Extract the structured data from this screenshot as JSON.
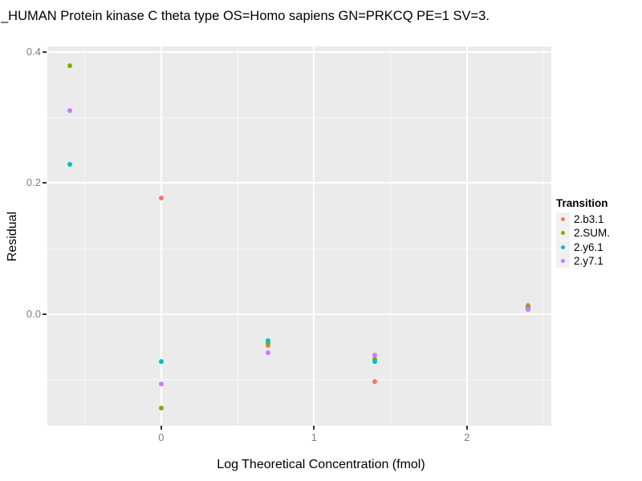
{
  "chart_data": {
    "type": "scatter",
    "title": "_HUMAN Protein kinase C theta type OS=Homo sapiens GN=PRKCQ PE=1 SV=3.",
    "xlabel": "Log Theoretical Concentration (fmol)",
    "ylabel": "Residual",
    "xlim": [
      -0.745,
      2.55
    ],
    "ylim": [
      -0.169,
      0.408
    ],
    "grid": true,
    "x_ticks": [
      {
        "value": 0,
        "label": "0"
      },
      {
        "value": 1,
        "label": "1"
      },
      {
        "value": 2,
        "label": "2"
      }
    ],
    "y_ticks": [
      {
        "value": 0.0,
        "label": "0.0"
      },
      {
        "value": 0.2,
        "label": "0.2"
      },
      {
        "value": 0.4,
        "label": "0.4"
      }
    ],
    "x_minor_gridlines": [
      -0.5,
      0.5,
      1.5,
      2.5
    ],
    "y_minor_gridlines": [
      -0.1,
      0.1,
      0.3
    ],
    "colors": {
      "panel_bg": "#EBEBEB",
      "gridline": "#FFFFFF",
      "tick_label": "#7d7d7d",
      "tick_mark": "#333333",
      "axis_title": "#000000",
      "legend_key_bg": "#F0F0F0"
    },
    "legend": {
      "title": "Transition",
      "position": "right"
    },
    "series": [
      {
        "name": "2.b3.1",
        "color": "#F8766D",
        "points": [
          [
            0,
            0.177
          ],
          [
            0.7,
            -0.047
          ],
          [
            1.4,
            -0.102
          ],
          [
            2.4,
            0.013
          ]
        ]
      },
      {
        "name": "2.SUM.",
        "color": "#7CAE00",
        "points": [
          [
            -0.6,
            0.379
          ],
          [
            0,
            -0.143
          ],
          [
            0.7,
            -0.044
          ],
          [
            1.4,
            -0.068
          ],
          [
            2.4,
            0.011
          ]
        ]
      },
      {
        "name": "2.y6.1",
        "color": "#00BFC4",
        "points": [
          [
            -0.6,
            0.229
          ],
          [
            0,
            -0.072
          ],
          [
            0.7,
            -0.04
          ],
          [
            1.4,
            -0.072
          ],
          [
            2.4,
            0.009
          ]
        ]
      },
      {
        "name": "2.y7.1",
        "color": "#C77CFF",
        "points": [
          [
            -0.6,
            0.31
          ],
          [
            0,
            -0.106
          ],
          [
            0.7,
            -0.059
          ],
          [
            1.4,
            -0.062
          ],
          [
            2.4,
            0.008
          ]
        ]
      }
    ]
  }
}
